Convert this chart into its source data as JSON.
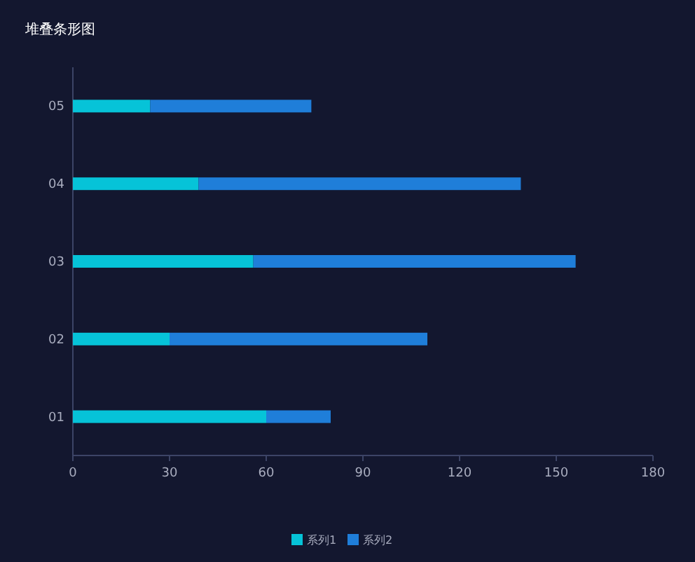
{
  "chart_data": {
    "type": "bar",
    "title": "堆叠条形图",
    "orientation": "horizontal",
    "stacked": true,
    "categories": [
      "05",
      "04",
      "03",
      "02",
      "01"
    ],
    "series": [
      {
        "name": "系列1",
        "color": "#06c3d8",
        "values": [
          24,
          39,
          56,
          30,
          60
        ]
      },
      {
        "name": "系列2",
        "color": "#1f7ed9",
        "values": [
          50,
          100,
          100,
          80,
          20
        ]
      }
    ],
    "xlim": [
      0,
      180
    ],
    "xticks": [
      0,
      30,
      60,
      90,
      120,
      150,
      180
    ],
    "grid": false,
    "legend": "bottom"
  }
}
